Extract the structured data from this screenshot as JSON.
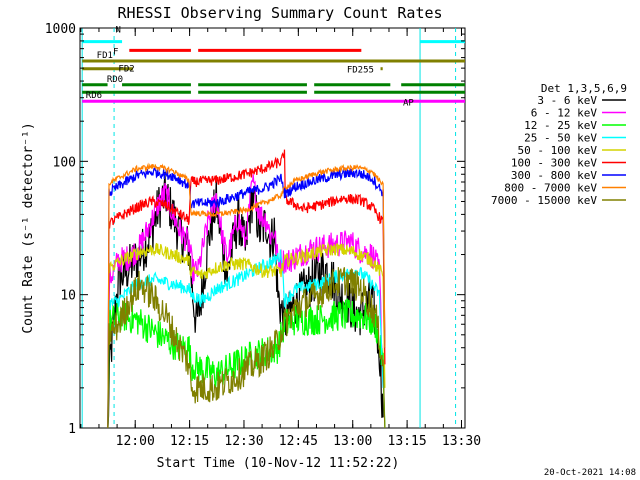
{
  "chart_data": {
    "type": "line",
    "title": "RHESSI Observing Summary Count Rates",
    "xlabel": "Start Time (10-Nov-12 11:52:22)",
    "ylabel": "Count Rate (s⁻¹ detector⁻¹)",
    "yscale": "log",
    "xlim": [
      -7.6,
      98.6
    ],
    "ylim": [
      1,
      1000
    ],
    "grid": false,
    "legend_position": "right",
    "x_unit": "minutes since 11:52:22",
    "x_ticks": [
      {
        "label": "12:00",
        "value": 7.63
      },
      {
        "label": "12:15",
        "value": 22.63
      },
      {
        "label": "12:30",
        "value": 37.63
      },
      {
        "label": "12:45",
        "value": 52.63
      },
      {
        "label": "13:00",
        "value": 67.63
      },
      {
        "label": "13:15",
        "value": 82.63
      },
      {
        "label": "13:30",
        "value": 97.63
      }
    ],
    "y_ticks": [
      {
        "label": "1",
        "value": 1
      },
      {
        "label": "10",
        "value": 10
      },
      {
        "label": "100",
        "value": 100
      },
      {
        "label": "1000",
        "value": 1000
      }
    ],
    "legend_title": "Det 1,3,5,6,9",
    "timestamp": "20-Oct-2021 14:08",
    "vlines": [
      {
        "x": -7.0,
        "color": "#00e5e5",
        "style": "solid"
      },
      {
        "x": 1.8,
        "color": "#00e5e5",
        "style": "dashed"
      },
      {
        "x": 86.2,
        "color": "#00e5e5",
        "style": "solid"
      },
      {
        "x": 96.0,
        "color": "#00e5e5",
        "style": "dashed"
      }
    ],
    "flag_bars": [
      {
        "label": "N",
        "y": 790,
        "color": "#00ffff",
        "segments": [
          [
            -7,
            4
          ],
          [
            86.2,
            98.6
          ]
        ]
      },
      {
        "label": "F",
        "y": 680,
        "color": "#ff0000",
        "segments": [
          [
            6,
            23
          ],
          [
            25,
            70
          ]
        ]
      },
      {
        "label": "FD1",
        "y": 565,
        "color": "#808000",
        "segments": [
          [
            -7,
            98.6
          ]
        ]
      },
      {
        "label": "FD2",
        "y": 495,
        "color": "#808000",
        "segments": [
          [
            -7,
            7
          ]
        ]
      },
      {
        "label": "FD255",
        "y": 495,
        "color": "#808000",
        "segments": [
          [
            75.3,
            75.9
          ]
        ]
      },
      {
        "label": "RD0",
        "y": 375,
        "color": "#008000",
        "segments": [
          [
            -7,
            0
          ],
          [
            4,
            23
          ],
          [
            25,
            55
          ],
          [
            57,
            78
          ],
          [
            81,
            98.6
          ]
        ]
      },
      {
        "label": "RD6",
        "y": 330,
        "color": "#008000",
        "segments": [
          [
            -7,
            23
          ],
          [
            25,
            55
          ],
          [
            57,
            98.6
          ]
        ]
      },
      {
        "label": "AP",
        "y": 282,
        "color": "#ff00ff",
        "segments": [
          [
            -7,
            98.6
          ]
        ]
      }
    ],
    "series": [
      {
        "name": "3 - 6 keV",
        "color": "#000000",
        "points": [
          [
            0.1,
            1
          ],
          [
            0.6,
            3
          ],
          [
            3,
            13
          ],
          [
            6,
            16
          ],
          [
            9,
            20
          ],
          [
            12,
            28
          ],
          [
            14,
            45
          ],
          [
            16,
            56
          ],
          [
            18,
            40
          ],
          [
            20,
            28
          ],
          [
            22.5,
            22
          ],
          [
            23.5,
            10
          ],
          [
            24.5,
            6
          ],
          [
            26,
            10
          ],
          [
            28,
            28
          ],
          [
            30,
            50
          ],
          [
            32,
            20
          ],
          [
            33,
            14
          ],
          [
            36,
            38
          ],
          [
            38,
            22
          ],
          [
            40,
            55
          ],
          [
            42,
            30
          ],
          [
            44,
            34
          ],
          [
            45,
            25
          ],
          [
            46,
            30
          ],
          [
            47,
            10
          ],
          [
            48.8,
            6
          ],
          [
            52,
            9
          ],
          [
            56,
            12
          ],
          [
            60,
            16
          ],
          [
            62,
            13
          ],
          [
            64,
            10
          ],
          [
            66,
            9
          ],
          [
            69,
            7
          ],
          [
            71,
            8
          ],
          [
            73,
            9
          ],
          [
            75,
            4
          ],
          [
            76,
            1.2
          ]
        ],
        "spread": 0.18
      },
      {
        "name": "6 - 12 keV",
        "color": "#ff00ff",
        "points": [
          [
            0.1,
            1
          ],
          [
            0.5,
            13
          ],
          [
            3,
            18
          ],
          [
            6,
            19
          ],
          [
            9,
            23
          ],
          [
            12,
            35
          ],
          [
            14,
            48
          ],
          [
            16,
            58
          ],
          [
            18,
            40
          ],
          [
            20,
            30
          ],
          [
            22.5,
            24
          ],
          [
            23.5,
            15
          ],
          [
            25,
            15
          ],
          [
            28,
            38
          ],
          [
            30,
            55
          ],
          [
            32,
            24
          ],
          [
            33,
            19
          ],
          [
            36,
            38
          ],
          [
            38,
            25
          ],
          [
            40,
            70
          ],
          [
            42,
            40
          ],
          [
            44,
            36
          ],
          [
            45,
            27
          ],
          [
            46,
            30
          ],
          [
            47,
            18
          ],
          [
            50,
            18
          ],
          [
            56,
            22
          ],
          [
            60,
            23
          ],
          [
            64,
            24
          ],
          [
            67,
            25
          ],
          [
            70,
            21
          ],
          [
            73,
            20
          ],
          [
            75,
            15
          ],
          [
            76,
            2
          ]
        ],
        "spread": 0.1
      },
      {
        "name": "12 - 25 keV",
        "color": "#00ff00",
        "points": [
          [
            0.1,
            1
          ],
          [
            0.4,
            6
          ],
          [
            3,
            7
          ],
          [
            8,
            6.5
          ],
          [
            14,
            5
          ],
          [
            20,
            4
          ],
          [
            22.5,
            4
          ],
          [
            23,
            3
          ],
          [
            30,
            2.5
          ],
          [
            40,
            3.5
          ],
          [
            47,
            4
          ],
          [
            48.8,
            6
          ],
          [
            52,
            6.5
          ],
          [
            58,
            6.5
          ],
          [
            64,
            7
          ],
          [
            70,
            7
          ],
          [
            74,
            6
          ],
          [
            76,
            3
          ],
          [
            76.5,
            1
          ]
        ],
        "spread": 0.12
      },
      {
        "name": "25 - 50 keV",
        "color": "#00ffff",
        "points": [
          [
            0.1,
            1
          ],
          [
            0.4,
            8.5
          ],
          [
            3,
            9
          ],
          [
            8,
            12
          ],
          [
            13,
            13
          ],
          [
            18,
            12
          ],
          [
            22.5,
            11
          ],
          [
            23,
            10
          ],
          [
            26,
            9
          ],
          [
            30,
            11
          ],
          [
            36,
            13
          ],
          [
            42,
            16
          ],
          [
            46,
            18
          ],
          [
            48,
            20
          ],
          [
            48.8,
            9
          ],
          [
            52,
            11
          ],
          [
            58,
            12
          ],
          [
            64,
            14
          ],
          [
            69,
            15
          ],
          [
            72,
            13
          ],
          [
            75,
            10
          ],
          [
            76,
            2
          ]
        ],
        "spread": 0.05
      },
      {
        "name": "50 - 100 keV",
        "color": "#d4d400",
        "points": [
          [
            0.1,
            1
          ],
          [
            0.4,
            16
          ],
          [
            4,
            18
          ],
          [
            9,
            21
          ],
          [
            13,
            22
          ],
          [
            18,
            20
          ],
          [
            22.5,
            18
          ],
          [
            23,
            15
          ],
          [
            26,
            14
          ],
          [
            30,
            16
          ],
          [
            34,
            17
          ],
          [
            38,
            17
          ],
          [
            43,
            15
          ],
          [
            48,
            15
          ],
          [
            48.8,
            18
          ],
          [
            53,
            19
          ],
          [
            58,
            21
          ],
          [
            63,
            22
          ],
          [
            68,
            21
          ],
          [
            73,
            18
          ],
          [
            76,
            14
          ],
          [
            76.5,
            2
          ]
        ],
        "spread": 0.05
      },
      {
        "name": "100 - 300 keV",
        "color": "#ff0000",
        "points": [
          [
            0.1,
            1
          ],
          [
            0.4,
            34
          ],
          [
            3,
            38
          ],
          [
            8,
            45
          ],
          [
            12,
            50
          ],
          [
            16,
            47
          ],
          [
            20,
            40
          ],
          [
            22.5,
            36
          ],
          [
            23,
            70
          ],
          [
            30,
            72
          ],
          [
            38,
            80
          ],
          [
            44,
            90
          ],
          [
            48,
            100
          ],
          [
            48.8,
            118
          ],
          [
            49,
            52
          ],
          [
            54,
            44
          ],
          [
            60,
            48
          ],
          [
            65,
            53
          ],
          [
            70,
            51
          ],
          [
            73,
            45
          ],
          [
            76,
            35
          ],
          [
            76.5,
            3
          ]
        ],
        "spread": 0.04
      },
      {
        "name": "300 - 800 keV",
        "color": "#0000ff",
        "points": [
          [
            0.1,
            1
          ],
          [
            0.4,
            58
          ],
          [
            3,
            65
          ],
          [
            8,
            78
          ],
          [
            13,
            84
          ],
          [
            18,
            78
          ],
          [
            22.5,
            66
          ],
          [
            23,
            48
          ],
          [
            30,
            49
          ],
          [
            38,
            58
          ],
          [
            44,
            64
          ],
          [
            48,
            75
          ],
          [
            48.8,
            57
          ],
          [
            52,
            65
          ],
          [
            58,
            73
          ],
          [
            64,
            80
          ],
          [
            69,
            82
          ],
          [
            73,
            75
          ],
          [
            76,
            58
          ],
          [
            76.5,
            4
          ]
        ],
        "spread": 0.04
      },
      {
        "name": "800 - 7000 keV",
        "color": "#ff8000",
        "points": [
          [
            0.1,
            1
          ],
          [
            0.4,
            68
          ],
          [
            3,
            75
          ],
          [
            8,
            88
          ],
          [
            13,
            92
          ],
          [
            18,
            85
          ],
          [
            22.5,
            72
          ],
          [
            23,
            41
          ],
          [
            30,
            40
          ],
          [
            38,
            43
          ],
          [
            44,
            50
          ],
          [
            48,
            56
          ],
          [
            48.8,
            63
          ],
          [
            52,
            72
          ],
          [
            58,
            82
          ],
          [
            64,
            88
          ],
          [
            69,
            90
          ],
          [
            73,
            84
          ],
          [
            76,
            66
          ],
          [
            76.5,
            4
          ]
        ],
        "spread": 0.02
      },
      {
        "name": "7000 - 15000 keV",
        "color": "#808000",
        "points": [
          [
            0.1,
            1
          ],
          [
            0.4,
            5
          ],
          [
            3,
            6
          ],
          [
            6,
            9
          ],
          [
            9,
            12
          ],
          [
            12,
            10
          ],
          [
            16,
            7
          ],
          [
            20,
            4
          ],
          [
            22.5,
            3
          ],
          [
            23,
            2
          ],
          [
            30,
            2
          ],
          [
            36,
            2.5
          ],
          [
            42,
            3.2
          ],
          [
            46,
            4
          ],
          [
            48.8,
            6
          ],
          [
            52,
            8
          ],
          [
            58,
            10
          ],
          [
            62,
            12
          ],
          [
            66,
            13
          ],
          [
            70,
            11
          ],
          [
            74,
            7
          ],
          [
            76,
            3
          ],
          [
            76.5,
            1
          ]
        ],
        "spread": 0.12
      }
    ]
  }
}
